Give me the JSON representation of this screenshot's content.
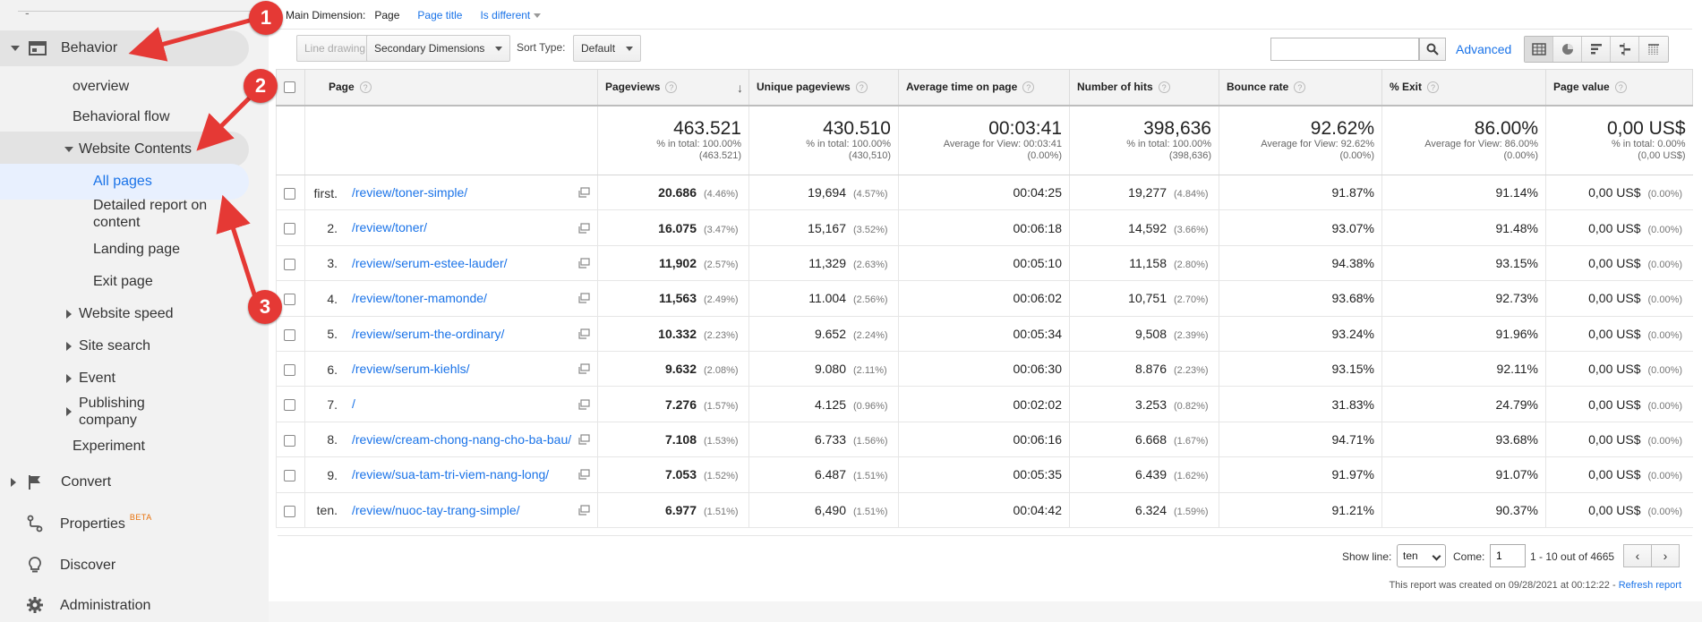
{
  "sidebar": {
    "top_dash": "-",
    "items": [
      {
        "label": "Behavior"
      },
      {
        "label": "overview"
      },
      {
        "label": "Behavioral flow"
      },
      {
        "label": "Website Contents"
      },
      {
        "label": "All pages"
      },
      {
        "label": "Detailed report on content"
      },
      {
        "label": "Landing page"
      },
      {
        "label": "Exit page"
      },
      {
        "label": "Website speed"
      },
      {
        "label": "Site search"
      },
      {
        "label": "Event"
      },
      {
        "label": "Publishing company"
      },
      {
        "label": "Experiment"
      },
      {
        "label": "Convert"
      },
      {
        "label": "Properties",
        "badge": "BETA"
      },
      {
        "label": "Discover"
      },
      {
        "label": "Administration"
      }
    ]
  },
  "toolbar": {
    "main_dimension_label": "Main Dimension:",
    "main_dimension_value": "Page",
    "page_title_link": "Page title",
    "is_different": "Is different",
    "line_drawing": "Line drawing",
    "secondary_dimensions": "Secondary Dimensions",
    "sort_type_label": "Sort Type:",
    "sort_type_value": "Default",
    "search_placeholder": "",
    "advanced": "Advanced"
  },
  "table": {
    "headers": [
      "Page",
      "Pageviews",
      "Unique pageviews",
      "Average time on page",
      "Number of hits",
      "Bounce rate",
      "% Exit",
      "Page value"
    ],
    "totals": [
      {
        "big": "463.521",
        "l1": "% in total: 100.00%",
        "l2": "(463.521)"
      },
      {
        "big": "430.510",
        "l1": "% in total: 100.00%",
        "l2": "(430,510)"
      },
      {
        "big": "00:03:41",
        "l1": "Average for View: 00:03:41",
        "l2": "(0.00%)"
      },
      {
        "big": "398,636",
        "l1": "% in total: 100.00%",
        "l2": "(398,636)"
      },
      {
        "big": "92.62%",
        "l1": "Average for View: 92.62%",
        "l2": "(0.00%)"
      },
      {
        "big": "86.00%",
        "l1": "Average for View: 86.00%",
        "l2": "(0.00%)"
      },
      {
        "big": "0,00 US$",
        "l1": "% in total: 0.00%",
        "l2": "(0,00 US$)"
      }
    ],
    "rows": [
      {
        "rank": "first.",
        "page": "/review/toner-simple/",
        "pv": "20.686",
        "pvp": "(4.46%)",
        "upv": "19,694",
        "upvp": "(4.57%)",
        "avg": "00:04:25",
        "hits": "19,277",
        "hitsp": "(4.84%)",
        "bounce": "91.87%",
        "exit": "91.14%",
        "val": "0,00 US$",
        "valp": "(0.00%)"
      },
      {
        "rank": "2.",
        "page": "/review/toner/",
        "pv": "16.075",
        "pvp": "(3.47%)",
        "upv": "15,167",
        "upvp": "(3.52%)",
        "avg": "00:06:18",
        "hits": "14,592",
        "hitsp": "(3.66%)",
        "bounce": "93.07%",
        "exit": "91.48%",
        "val": "0,00 US$",
        "valp": "(0.00%)"
      },
      {
        "rank": "3.",
        "page": "/review/serum-estee-lauder/",
        "pv": "11,902",
        "pvp": "(2.57%)",
        "upv": "11,329",
        "upvp": "(2.63%)",
        "avg": "00:05:10",
        "hits": "11,158",
        "hitsp": "(2.80%)",
        "bounce": "94.38%",
        "exit": "93.15%",
        "val": "0,00 US$",
        "valp": "(0.00%)"
      },
      {
        "rank": "4.",
        "page": "/review/toner-mamonde/",
        "pv": "11,563",
        "pvp": "(2.49%)",
        "upv": "11.004",
        "upvp": "(2.56%)",
        "avg": "00:06:02",
        "hits": "10,751",
        "hitsp": "(2.70%)",
        "bounce": "93.68%",
        "exit": "92.73%",
        "val": "0,00 US$",
        "valp": "(0.00%)"
      },
      {
        "rank": "5.",
        "page": "/review/serum-the-ordinary/",
        "pv": "10.332",
        "pvp": "(2.23%)",
        "upv": "9.652",
        "upvp": "(2.24%)",
        "avg": "00:05:34",
        "hits": "9,508",
        "hitsp": "(2.39%)",
        "bounce": "93.24%",
        "exit": "91.96%",
        "val": "0,00 US$",
        "valp": "(0.00%)"
      },
      {
        "rank": "6.",
        "page": "/review/serum-kiehls/",
        "pv": "9.632",
        "pvp": "(2.08%)",
        "upv": "9.080",
        "upvp": "(2.11%)",
        "avg": "00:06:30",
        "hits": "8.876",
        "hitsp": "(2.23%)",
        "bounce": "93.15%",
        "exit": "92.11%",
        "val": "0,00 US$",
        "valp": "(0.00%)"
      },
      {
        "rank": "7.",
        "page": "/",
        "pv": "7.276",
        "pvp": "(1.57%)",
        "upv": "4.125",
        "upvp": "(0.96%)",
        "avg": "00:02:02",
        "hits": "3.253",
        "hitsp": "(0.82%)",
        "bounce": "31.83%",
        "exit": "24.79%",
        "val": "0,00 US$",
        "valp": "(0.00%)"
      },
      {
        "rank": "8.",
        "page": "/review/cream-chong-nang-cho-ba-bau/",
        "pv": "7.108",
        "pvp": "(1.53%)",
        "upv": "6.733",
        "upvp": "(1.56%)",
        "avg": "00:06:16",
        "hits": "6.668",
        "hitsp": "(1.67%)",
        "bounce": "94.71%",
        "exit": "93.68%",
        "val": "0,00 US$",
        "valp": "(0.00%)"
      },
      {
        "rank": "9.",
        "page": "/review/sua-tam-tri-viem-nang-long/",
        "pv": "7.053",
        "pvp": "(1.52%)",
        "upv": "6.487",
        "upvp": "(1.51%)",
        "avg": "00:05:35",
        "hits": "6.439",
        "hitsp": "(1.62%)",
        "bounce": "91.97%",
        "exit": "91.07%",
        "val": "0,00 US$",
        "valp": "(0.00%)"
      },
      {
        "rank": "ten.",
        "page": "/review/nuoc-tay-trang-simple/",
        "pv": "6.977",
        "pvp": "(1.51%)",
        "upv": "6,490",
        "upvp": "(1.51%)",
        "avg": "00:04:42",
        "hits": "6.324",
        "hitsp": "(1.59%)",
        "bounce": "91.21%",
        "exit": "90.37%",
        "val": "0,00 US$",
        "valp": "(0.00%)"
      }
    ]
  },
  "footer": {
    "show_line_label": "Show line:",
    "show_line_value": "ten",
    "come_label": "Come:",
    "come_value": "1",
    "range": "1 - 10 out of 4665",
    "created_text": "This report was created on 09/28/2021 at 00:12:22 -",
    "refresh": "Refresh report"
  },
  "annotations": [
    "1",
    "2",
    "3"
  ],
  "colors": {
    "accent": "#1a73e8",
    "annotation": "#e53935",
    "beta": "#e8710a"
  }
}
